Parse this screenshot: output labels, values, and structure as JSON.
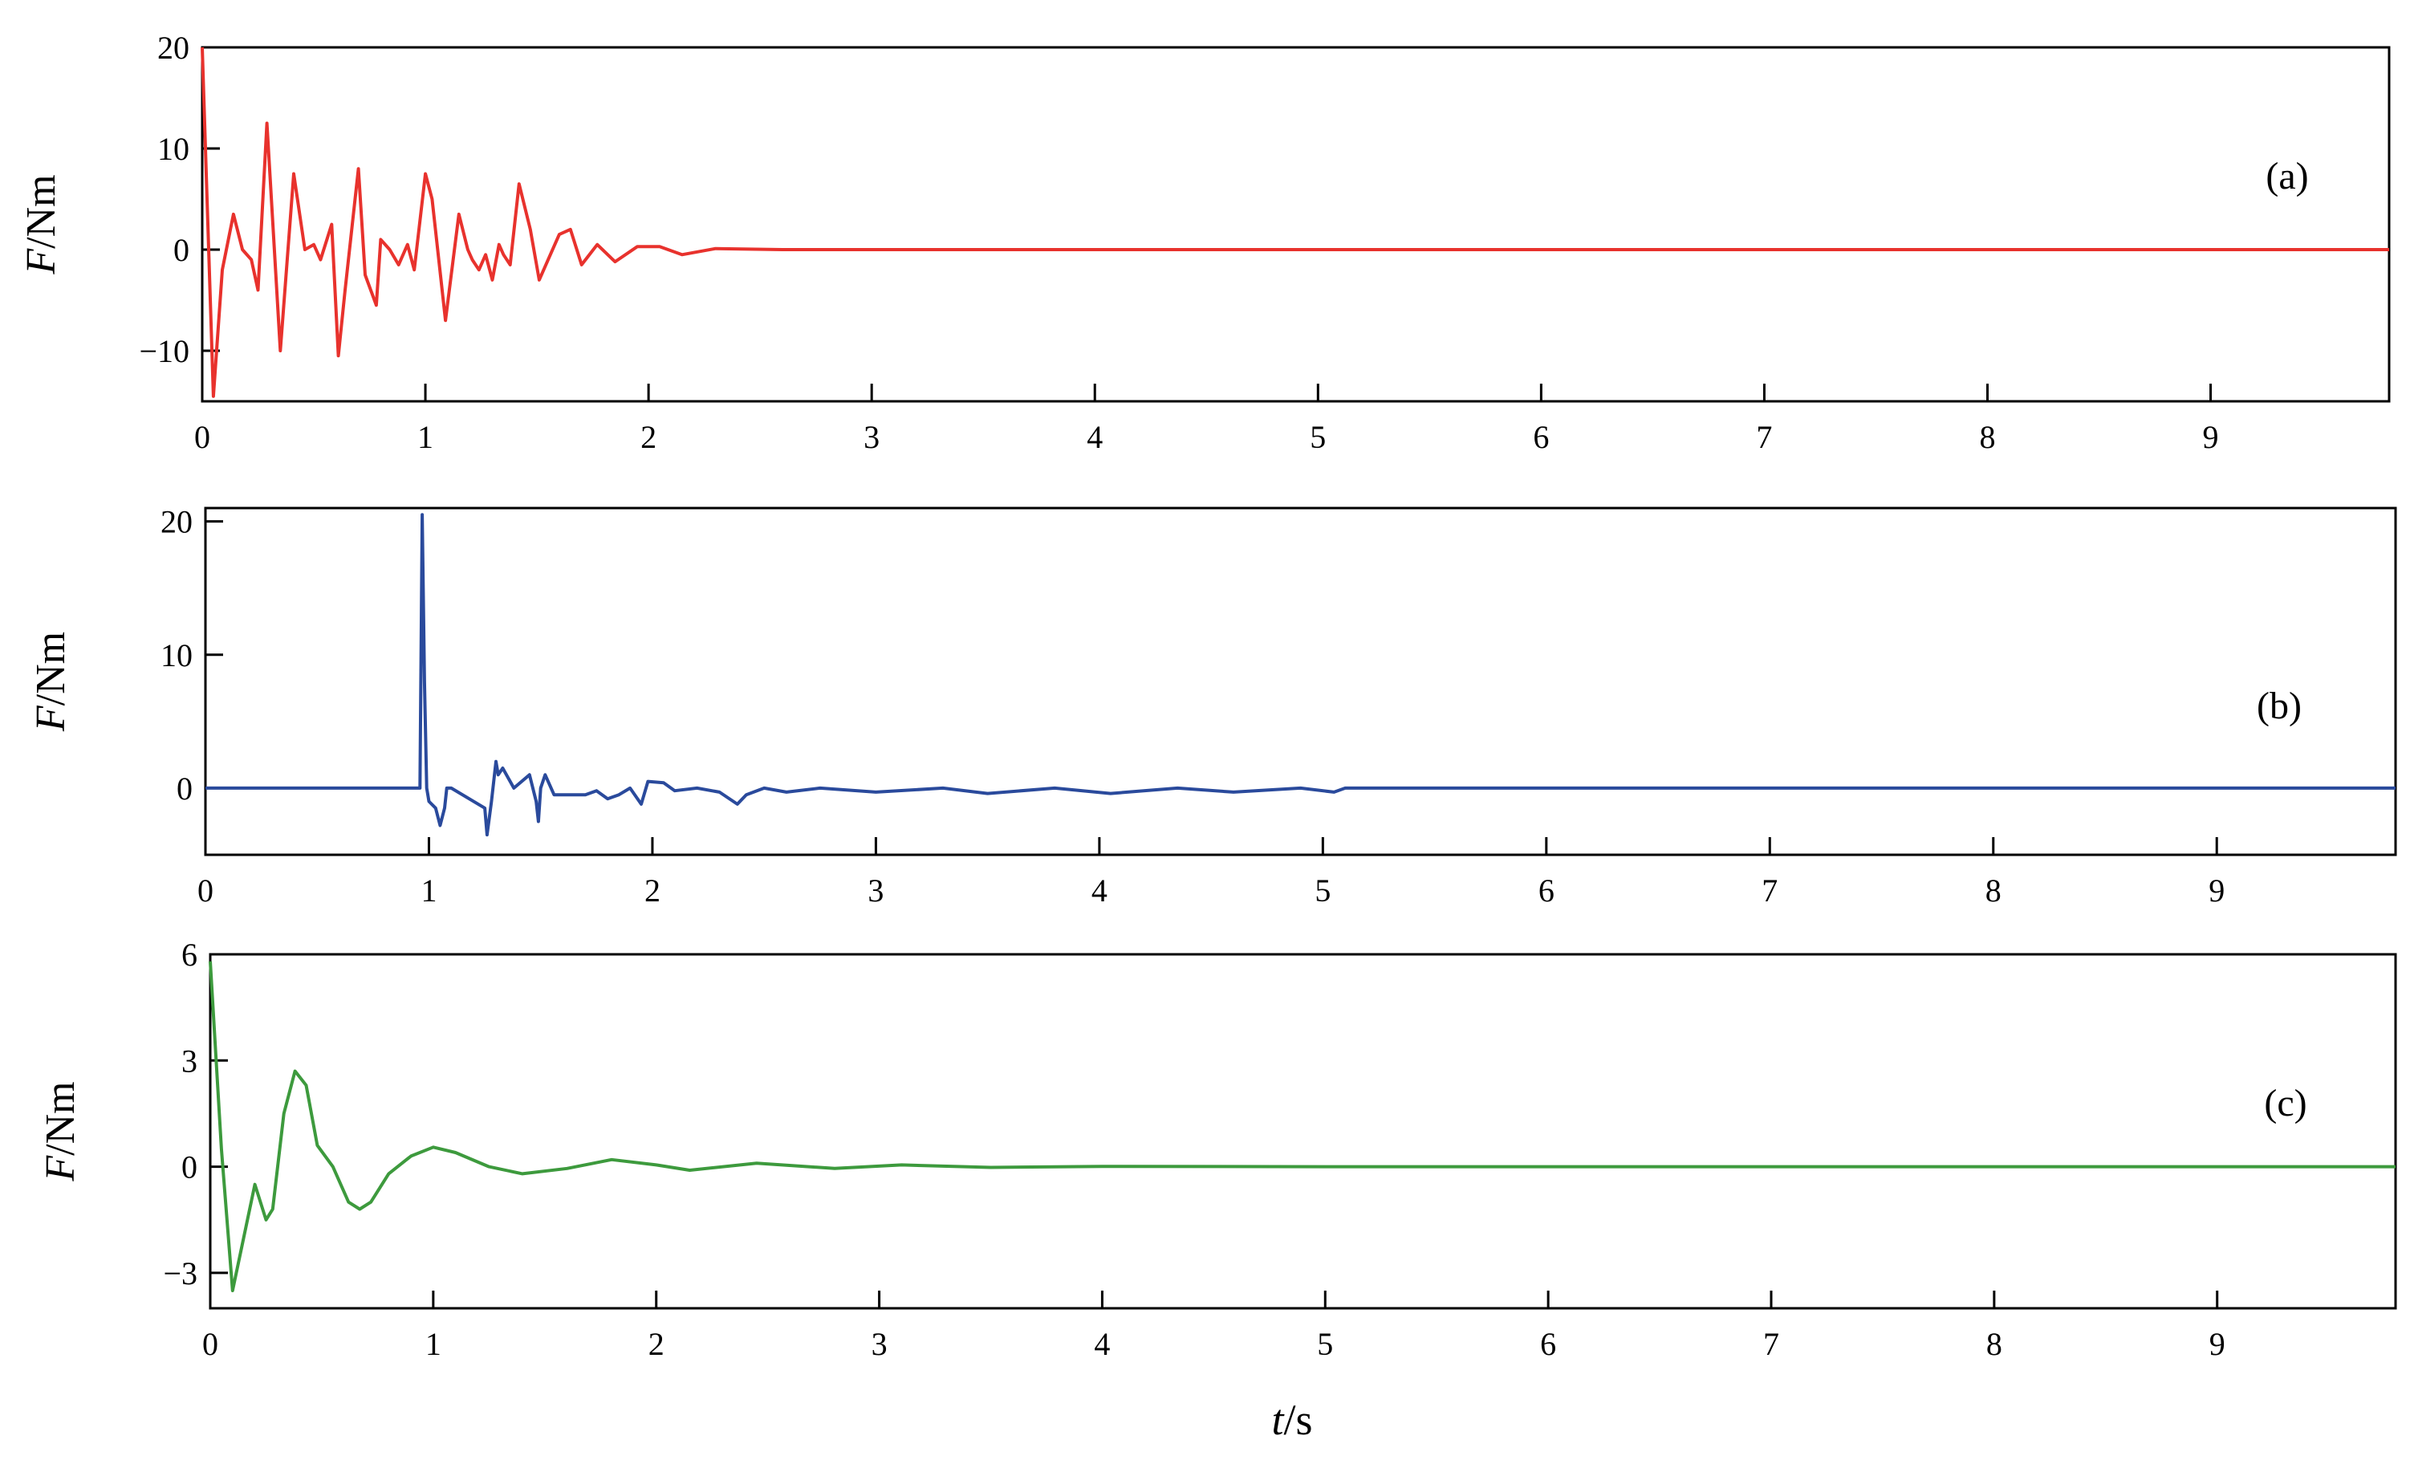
{
  "chart_data": [
    {
      "type": "line",
      "panel_label": "(a)",
      "ylabel_italic": "F",
      "ylabel_rest": "/Nm",
      "xlim": [
        0,
        9.8
      ],
      "ylim": [
        -15,
        20
      ],
      "xticks": [
        0,
        1,
        2,
        3,
        4,
        5,
        6,
        7,
        8,
        9
      ],
      "yticks": [
        -10,
        0,
        10,
        20
      ],
      "ytick_labels": [
        "−10",
        "0",
        "10",
        "20"
      ],
      "color": "#e8322d",
      "series": [
        {
          "x": [
            0,
            0.02,
            0.05,
            0.09,
            0.14,
            0.18,
            0.22,
            0.25,
            0.29,
            0.35,
            0.41,
            0.46,
            0.5,
            0.53,
            0.58,
            0.61,
            0.64,
            0.7,
            0.73,
            0.78,
            0.8,
            0.84,
            0.88,
            0.92,
            0.95,
            1.0,
            1.03,
            1.09,
            1.15,
            1.19,
            1.21,
            1.24,
            1.27,
            1.3,
            1.33,
            1.35,
            1.38,
            1.42,
            1.47,
            1.51,
            1.55,
            1.6,
            1.65,
            1.7,
            1.77,
            1.85,
            1.95,
            2.05,
            2.15,
            2.3,
            2.6,
            9.8
          ],
          "y": [
            20,
            6,
            -14.5,
            -2,
            3.5,
            0,
            -1,
            -4,
            12.5,
            -10,
            7.5,
            0,
            0.5,
            -1,
            2.5,
            -10.5,
            -4,
            8,
            -2.5,
            -5.5,
            1,
            0,
            -1.5,
            0.5,
            -2,
            7.5,
            5,
            -7,
            3.5,
            0,
            -1,
            -2,
            -0.5,
            -3,
            0.5,
            -0.5,
            -1.5,
            6.5,
            2,
            -3,
            -1,
            1.5,
            2,
            -1.5,
            0.5,
            -1.2,
            0.3,
            0.3,
            -0.5,
            0.1,
            0,
            0
          ]
        }
      ]
    },
    {
      "type": "line",
      "panel_label": "(b)",
      "ylabel_italic": "F",
      "ylabel_rest": "/Nm",
      "xlim": [
        0,
        9.8
      ],
      "ylim": [
        -5,
        21
      ],
      "xticks": [
        0,
        1,
        2,
        3,
        4,
        5,
        6,
        7,
        8,
        9
      ],
      "yticks": [
        0,
        10,
        20
      ],
      "ytick_labels": [
        "0",
        "10",
        "20"
      ],
      "color": "#2a4a9c",
      "series": [
        {
          "x": [
            0,
            0.96,
            0.97,
            0.98,
            0.99,
            1.0,
            1.03,
            1.05,
            1.07,
            1.08,
            1.1,
            1.25,
            1.26,
            1.28,
            1.3,
            1.31,
            1.33,
            1.38,
            1.45,
            1.48,
            1.49,
            1.5,
            1.52,
            1.56,
            1.6,
            1.7,
            1.75,
            1.8,
            1.85,
            1.9,
            1.95,
            1.98,
            2.05,
            2.1,
            2.2,
            2.3,
            2.38,
            2.42,
            2.5,
            2.6,
            2.75,
            3.0,
            3.3,
            3.5,
            3.8,
            4.05,
            4.35,
            4.6,
            4.9,
            5.05,
            5.1,
            9.8
          ],
          "y": [
            0,
            0,
            20.5,
            8,
            0,
            -1,
            -1.5,
            -2.8,
            -1.5,
            0,
            0,
            -1.5,
            -3.5,
            -1,
            2,
            1,
            1.5,
            0,
            1,
            -1,
            -2.5,
            0,
            1,
            -0.5,
            -0.5,
            -0.5,
            -0.2,
            -0.8,
            -0.5,
            0,
            -1.2,
            0.5,
            0.4,
            -0.2,
            0,
            -0.3,
            -1.2,
            -0.5,
            0,
            -0.3,
            0,
            -0.3,
            0,
            -0.4,
            0,
            -0.4,
            0,
            -0.3,
            0,
            -0.3,
            0,
            0
          ]
        }
      ]
    },
    {
      "type": "line",
      "panel_label": "(c)",
      "ylabel_italic": "F",
      "ylabel_rest": "/Nm",
      "xlim": [
        0,
        9.8
      ],
      "ylim": [
        -4,
        6
      ],
      "xticks": [
        0,
        1,
        2,
        3,
        4,
        5,
        6,
        7,
        8,
        9
      ],
      "yticks": [
        -3,
        0,
        3,
        6
      ],
      "ytick_labels": [
        "−3",
        "0",
        "3",
        "6"
      ],
      "color": "#3d9a3d",
      "series": [
        {
          "x": [
            0,
            0.05,
            0.1,
            0.15,
            0.2,
            0.25,
            0.28,
            0.33,
            0.38,
            0.43,
            0.48,
            0.55,
            0.62,
            0.67,
            0.72,
            0.8,
            0.9,
            1.0,
            1.1,
            1.25,
            1.4,
            1.6,
            1.8,
            2.0,
            2.15,
            2.45,
            2.8,
            3.1,
            3.5,
            4.0,
            5.0,
            6.0,
            7.0,
            8.0,
            9.0,
            9.8
          ],
          "y": [
            5.8,
            0.5,
            -3.5,
            -2.0,
            -0.5,
            -1.5,
            -1.2,
            1.5,
            2.7,
            2.3,
            0.6,
            0.0,
            -1.0,
            -1.2,
            -1.0,
            -0.2,
            0.3,
            0.55,
            0.4,
            0.0,
            -0.2,
            -0.05,
            0.2,
            0.05,
            -0.1,
            0.1,
            -0.05,
            0.05,
            -0.02,
            0.01,
            0.0,
            0.0,
            0.0,
            0.0,
            0.0,
            0.0
          ]
        }
      ]
    }
  ],
  "xlabel_italic": "t",
  "xlabel_rest": "/s"
}
